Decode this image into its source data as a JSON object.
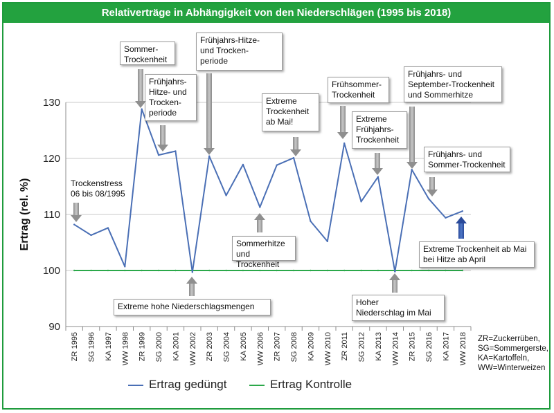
{
  "title": "Relativerträge in Abhängigkeit von den Niederschlägen (1995 bis 2018)",
  "chart_data": {
    "type": "line",
    "title": "Relativerträge in Abhängigkeit von den Niederschlägen (1995 bis 2018)",
    "ylabel": "Ertrag (rel. %)",
    "xlabel": "",
    "ylim": [
      90,
      130
    ],
    "yticks": [
      "90",
      "100",
      "110",
      "120",
      "130"
    ],
    "grid": true,
    "categories": [
      "ZR 1995",
      "SG 1996",
      "KA 1997",
      "WW 1998",
      "ZR 1999",
      "SG 2000",
      "KA 2001",
      "WW 2002",
      "ZR 2003",
      "SG 2004",
      "KA 2005",
      "WW 2006",
      "ZR 2007",
      "SG 2008",
      "KA 2009",
      "WW 2010",
      "ZR 2011",
      "SG 2012",
      "KA 2013",
      "WW 2014",
      "ZR 2015",
      "SG 2016",
      "KA 2017",
      "WW 2018"
    ],
    "series": [
      {
        "name": "Ertrag gedüngt",
        "color": "#4a6fb5",
        "values": [
          108.2,
          106.3,
          107.6,
          100.7,
          128.8,
          120.6,
          121.3,
          99.7,
          120.4,
          113.4,
          118.9,
          111.3,
          118.8,
          120.1,
          108.8,
          105.2,
          122.7,
          112.3,
          116.7,
          99.8,
          118.0,
          112.8,
          109.4,
          110.6
        ]
      },
      {
        "name": "Ertrag Kontrolle",
        "color": "#2ba84a",
        "values": [
          100,
          100,
          100,
          100,
          100,
          100,
          100,
          100,
          100,
          100,
          100,
          100,
          100,
          100,
          100,
          100,
          100,
          100,
          100,
          100,
          100,
          100,
          100,
          100
        ]
      }
    ]
  },
  "annotations": {
    "trockenstress": "Trockenstress\n06 bis 08/1995",
    "sommer_trocken": "Sommer-\nTrockenheit",
    "fj_hitze_trocken": "Frühjahrs-\nHitze- und\nTrocken-\nperiode",
    "fj_hitze_trockenperiode": "Frühjahrs-Hitze-\nund Trocken-\nperiode",
    "extreme_trocken_mai": "Extreme\nTrockenheit\nab Mai!",
    "fruehsommer": "Frühsommer-\nTrockenheit",
    "extreme_fj_trocken": "Extreme\nFrühjahrs-\nTrockenheit",
    "fj_sept_sommerhitze": "Frühjahrs- und\nSeptember-Trockenheit\nund Sommerhitze",
    "fj_sommer_trocken": "Frühjahrs- und\nSommer-Trockenheit",
    "sommerhitze_trocken": "Sommerhitze\nund Trockenheit",
    "extreme_hohe_niederschlag": "Extreme hohe Niederschlagsmengen",
    "hoher_niederschlag": "Hoher\nNiederschlag im Mai",
    "extreme_trocken_april": "Extreme Trockenheit ab Mai\nbei Hitze ab April"
  },
  "notes": [
    "ZR=Zuckerrüben,",
    "SG=Sommergerste,",
    "KA=Kartoffeln,",
    "WW=Winterweizen"
  ],
  "legend": {
    "item1": "Ertrag gedüngt",
    "item2": "Ertrag Kontrolle"
  }
}
